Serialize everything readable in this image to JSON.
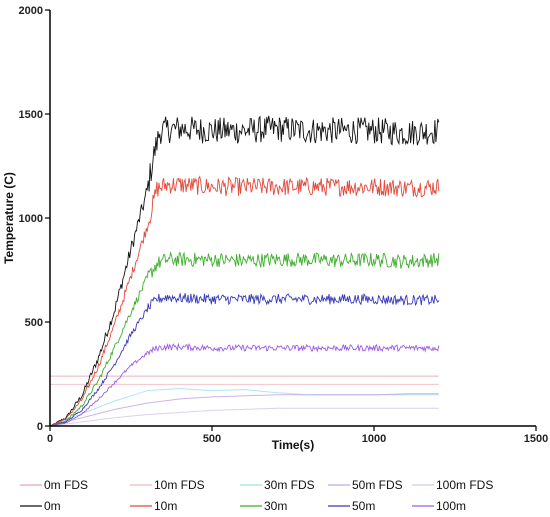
{
  "chart_data": {
    "type": "line",
    "title": "",
    "xlabel": "Time(s)",
    "ylabel": "Temperature (C)",
    "xlim": [
      0,
      1500
    ],
    "ylim": [
      0,
      2000
    ],
    "xticks": [
      0,
      500,
      1000,
      1500
    ],
    "yticks": [
      0,
      500,
      1000,
      1500,
      2000
    ],
    "grid": false,
    "legend_position": "bottom",
    "series": [
      {
        "name": "0m FDS",
        "color": "#e8a2b0",
        "style": "fds",
        "x": [
          0,
          1200
        ],
        "y": [
          240,
          240
        ]
      },
      {
        "name": "10m FDS",
        "color": "#f2b9c0",
        "style": "fds",
        "x": [
          0,
          1200
        ],
        "y": [
          200,
          200
        ]
      },
      {
        "name": "30m FDS",
        "color": "#9fe0ee",
        "style": "fds",
        "x": [
          0,
          100,
          200,
          300,
          400,
          500,
          600,
          700,
          800,
          900,
          1000,
          1100,
          1200
        ],
        "y": [
          0,
          60,
          120,
          170,
          180,
          170,
          175,
          160,
          150,
          150,
          150,
          150,
          150
        ]
      },
      {
        "name": "50m FDS",
        "color": "#c3a6e8",
        "style": "fds",
        "x": [
          0,
          100,
          200,
          300,
          400,
          500,
          600,
          700,
          800,
          900,
          1000,
          1100,
          1200
        ],
        "y": [
          0,
          40,
          80,
          110,
          130,
          140,
          145,
          150,
          150,
          150,
          150,
          155,
          155
        ]
      },
      {
        "name": "100m FDS",
        "color": "#d6c7f0",
        "style": "fds",
        "x": [
          0,
          100,
          200,
          300,
          400,
          500,
          600,
          700,
          800,
          900,
          1000,
          1100,
          1200
        ],
        "y": [
          0,
          20,
          40,
          55,
          65,
          75,
          80,
          85,
          85,
          85,
          85,
          85,
          85
        ]
      },
      {
        "name": "0m",
        "color": "#111111",
        "style": "test",
        "x": [
          0,
          50,
          100,
          150,
          200,
          250,
          300,
          320,
          340,
          400,
          500,
          600,
          700,
          800,
          900,
          1000,
          1100,
          1200
        ],
        "y": [
          0,
          40,
          150,
          330,
          560,
          850,
          1130,
          1300,
          1420,
          1430,
          1420,
          1420,
          1430,
          1420,
          1420,
          1420,
          1410,
          1420
        ],
        "noise": 65
      },
      {
        "name": "10m",
        "color": "#e24a3e",
        "style": "test",
        "x": [
          0,
          50,
          100,
          150,
          200,
          250,
          300,
          330,
          360,
          400,
          500,
          600,
          700,
          800,
          900,
          1000,
          1100,
          1200
        ],
        "y": [
          0,
          35,
          130,
          290,
          490,
          720,
          960,
          1140,
          1160,
          1160,
          1150,
          1150,
          1150,
          1150,
          1150,
          1150,
          1145,
          1150
        ],
        "noise": 45
      },
      {
        "name": "30m",
        "color": "#3fae2e",
        "style": "test",
        "x": [
          0,
          50,
          100,
          150,
          200,
          250,
          300,
          330,
          360,
          400,
          500,
          600,
          700,
          800,
          900,
          1000,
          1100,
          1200
        ],
        "y": [
          0,
          25,
          100,
          220,
          380,
          550,
          710,
          780,
          800,
          800,
          800,
          795,
          800,
          800,
          795,
          800,
          790,
          800
        ],
        "noise": 35
      },
      {
        "name": "50m",
        "color": "#3a3ab8",
        "style": "test",
        "x": [
          0,
          50,
          100,
          150,
          200,
          250,
          300,
          330,
          360,
          400,
          500,
          600,
          700,
          800,
          900,
          1000,
          1100,
          1200
        ],
        "y": [
          0,
          20,
          80,
          180,
          300,
          440,
          560,
          610,
          620,
          615,
          610,
          610,
          610,
          610,
          610,
          610,
          605,
          605
        ],
        "noise": 25
      },
      {
        "name": "100m",
        "color": "#9a5ee6",
        "style": "test",
        "x": [
          0,
          50,
          100,
          150,
          200,
          250,
          300,
          330,
          360,
          400,
          500,
          600,
          700,
          800,
          900,
          1000,
          1100,
          1200
        ],
        "y": [
          0,
          15,
          60,
          130,
          210,
          290,
          350,
          375,
          380,
          380,
          375,
          375,
          375,
          375,
          375,
          375,
          375,
          375
        ],
        "noise": 15
      }
    ]
  }
}
